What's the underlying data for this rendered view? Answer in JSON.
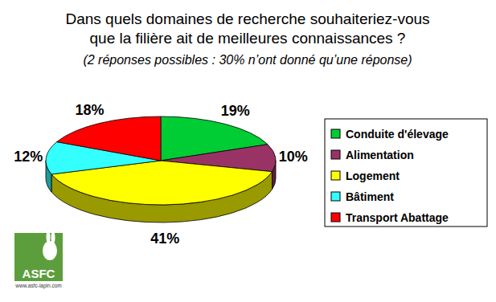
{
  "chart_data": {
    "type": "pie",
    "title": "Dans quels domaines de recherche souhaiteriez-vous que la filière ait de meilleures connaissances ?",
    "subtitle": "(2 réponses possibles : 30% n’ont donné qu’une réponse)",
    "categories": [
      "Conduite d'élevage",
      "Alimentation",
      "Logement",
      "Bâtiment",
      "Transport Abattage"
    ],
    "values": [
      19,
      10,
      41,
      12,
      18
    ],
    "value_labels": [
      "19%",
      "10%",
      "41%",
      "12%",
      "18%"
    ],
    "colors": [
      "#00cc33",
      "#993366",
      "#ffff00",
      "#33ffff",
      "#ff0000"
    ],
    "data_labels": true,
    "legend": "right",
    "annotations": [
      "ASFC",
      "www.asfc-lapin.com"
    ]
  }
}
